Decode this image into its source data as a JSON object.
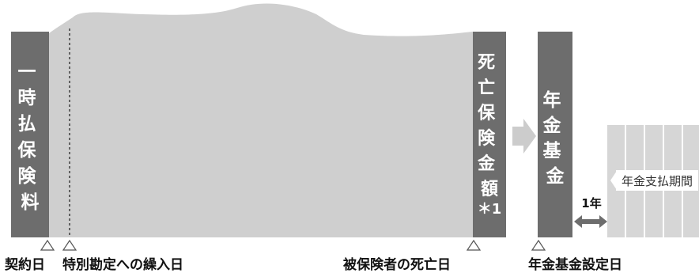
{
  "bars": {
    "lump_sum_premium_chars": [
      "一",
      "時",
      "払",
      "保",
      "険",
      "料"
    ],
    "death_benefit_chars": [
      "死",
      "亡",
      "保",
      "険",
      "金",
      "額"
    ],
    "death_benefit_note": "＊1",
    "annuity_fund_chars": [
      "年",
      "金",
      "基",
      "金"
    ]
  },
  "gap_label": "1年",
  "payout_period_label": "年金支払期間",
  "timeline": {
    "contract_date": "契約日",
    "special_account_entry_date": "特別勘定への繰入日",
    "insured_death_date": "被保険者の死亡日",
    "annuity_fund_setup_date": "年金基金設定日"
  },
  "colors": {
    "dark_bar": "#6d6d6d",
    "light_area": "#cfcfcf",
    "arrow": "#cccccc",
    "bar_text": "#ffffff",
    "label_text": "#111111",
    "gap_arrow": "#6d6d6d"
  }
}
